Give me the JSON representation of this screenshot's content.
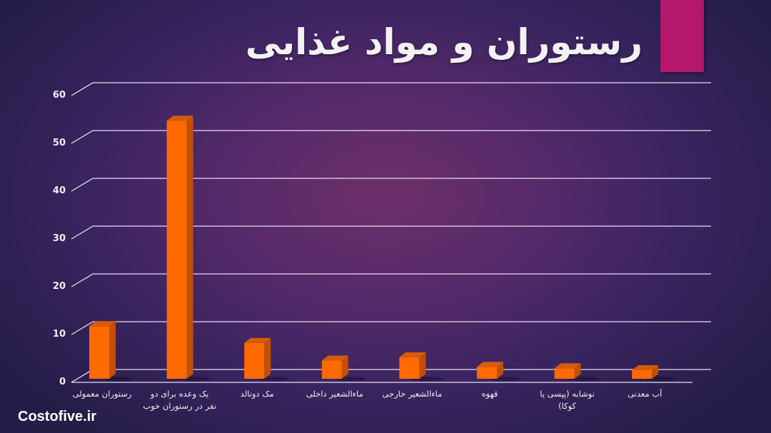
{
  "title": "رستوران و مواد غذایی",
  "brand": "Costofive.ir",
  "colors": {
    "accent": "#b5176a",
    "bar_front": "#ff6a00",
    "bar_side": "#c24f05",
    "bar_top": "#d85c05",
    "gridline": "#e8e0f0"
  },
  "chart_data": {
    "type": "bar",
    "title": "رستوران و مواد غذایی",
    "xlabel": "",
    "ylabel": "",
    "ylim": [
      0,
      60
    ],
    "yticks": [
      0,
      10,
      20,
      30,
      40,
      50,
      60
    ],
    "grid": true,
    "legend": null,
    "style": "3d-column",
    "categories": [
      "رستوران معمولی",
      "یک وعده برای دو نفر در رستوران خوب",
      "مک دونالد",
      "ماءالشعیر داخلی",
      "ماءالشعیر خارجی",
      "قهوه",
      "نوشابه (پپسی یا کوکا)",
      "آب معدنی"
    ],
    "values": [
      11,
      54,
      7.5,
      3.8,
      4.5,
      2.5,
      2.2,
      1.8
    ]
  },
  "axis": {
    "ytick_labels": [
      "0",
      "10",
      "20",
      "30",
      "40",
      "50",
      "60"
    ]
  },
  "x_labels": [
    {
      "line1": "رستوران معمولی",
      "line2": ""
    },
    {
      "line1": "یک وعده برای دو",
      "line2": "نفر در رستوران خوب"
    },
    {
      "line1": "مک دونالد",
      "line2": ""
    },
    {
      "line1": "ماءالشعیر داخلی",
      "line2": ""
    },
    {
      "line1": "ماءالشعیر خارجی",
      "line2": ""
    },
    {
      "line1": "قهوه",
      "line2": ""
    },
    {
      "line1": "نوشابه (پپسی یا",
      "line2": "کوکا)"
    },
    {
      "line1": "آب معدنی",
      "line2": ""
    }
  ]
}
